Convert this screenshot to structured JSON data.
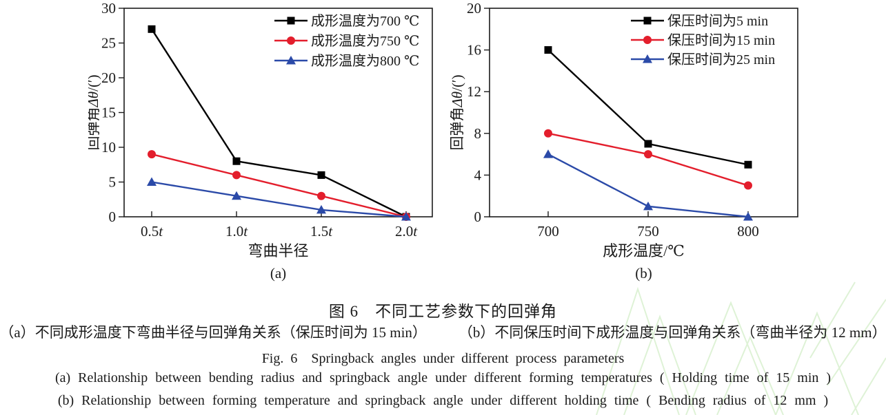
{
  "chart_data": [
    {
      "id": "a",
      "type": "line",
      "categories": [
        "0.5t",
        "1.0t",
        "1.5t",
        "2.0t"
      ],
      "xlabel": "弯曲半径",
      "ylabel": {
        "prefix": "回弹角",
        "symbol": "Δθ",
        "suffix": "/(′)"
      },
      "sublabel": "(a)",
      "ylim": [
        0,
        30
      ],
      "yticks": [
        0,
        5,
        10,
        15,
        20,
        25,
        30
      ],
      "grid": false,
      "legend_position": "top-right-inside",
      "series": [
        {
          "name": "成形温度为700 ℃",
          "marker": "square",
          "color": "#000000",
          "values": [
            27,
            8,
            6,
            0
          ]
        },
        {
          "name": "成形温度为750 ℃",
          "marker": "circle",
          "color": "#e31e2c",
          "values": [
            9,
            6,
            3,
            0
          ]
        },
        {
          "name": "成形温度为800 ℃",
          "marker": "triangle",
          "color": "#2b4aa8",
          "values": [
            5,
            3,
            1,
            0
          ]
        }
      ]
    },
    {
      "id": "b",
      "type": "line",
      "categories": [
        "700",
        "750",
        "800"
      ],
      "xlabel": "成形温度/℃",
      "ylabel": {
        "prefix": "回弹角",
        "symbol": "Δθ",
        "suffix": "/(′)"
      },
      "sublabel": "(b)",
      "ylim": [
        0,
        20
      ],
      "yticks": [
        0,
        4,
        8,
        12,
        16,
        20
      ],
      "grid": false,
      "legend_position": "top-right-inside",
      "series": [
        {
          "name": "保压时间为5 min",
          "marker": "square",
          "color": "#000000",
          "values": [
            16,
            7,
            5
          ]
        },
        {
          "name": "保压时间为15 min",
          "marker": "circle",
          "color": "#e31e2c",
          "values": [
            8,
            6,
            3
          ]
        },
        {
          "name": "保压时间为25 min",
          "marker": "triangle",
          "color": "#2b4aa8",
          "values": [
            6,
            1,
            0
          ]
        }
      ]
    }
  ],
  "captions": {
    "title_zh": "图 6　不同工艺参数下的回弹角",
    "sub_zh_a": "（a）不同成形温度下弯曲半径与回弹角关系（保压时间为 15 min）",
    "sub_zh_b": "（b）不同保压时间下成形温度与回弹角关系（弯曲半径为 12 mm）",
    "title_en": "Fig. 6　Springback angles under different process parameters",
    "sub_en_a": "(a)  Relationship between bending radius and springback angle under different forming temperatures ( Holding time of 15 min )",
    "sub_en_b": "(b)  Relationship between forming temperature and springback angle under different holding time  ( Bending radius of 12 mm )"
  },
  "colors": {
    "series_black": "#000000",
    "series_red": "#e31e2c",
    "series_blue": "#2b4aa8",
    "watermark_green": "#d9f0cf"
  }
}
